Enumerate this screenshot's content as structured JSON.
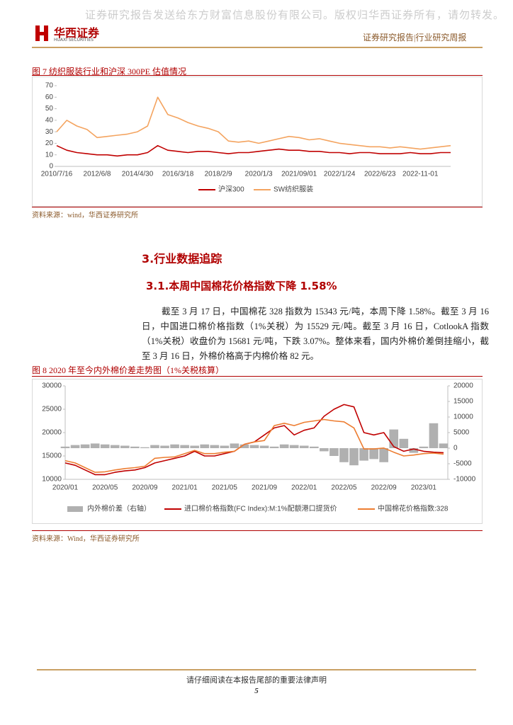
{
  "header": {
    "watermark": "证券研究报告发送给东方财富信息股份有限公司。版权归华西证券所有，请勿转发。",
    "logo_cn": "华西证券",
    "logo_en": "HUAXI SECURITIES",
    "report_type": "证券研究报告|行业研究周报"
  },
  "figure7": {
    "caption": "图 7  纺织服装行业和沪深 300PE 估值情况",
    "source": "资料来源：wind，华西证券研究所"
  },
  "section": {
    "title": "3.行业数据追踪",
    "subtitle": "3.1.本周中国棉花价格指数下降 1.58%",
    "paragraph": "截至 3 月 17 日，中国棉花 328 指数为 15343 元/吨，本周下降 1.58%。截至 3 月 16 日，中国进口棉价格指数（1%关税）为 15529 元/吨。截至 3 月 16 日，CotlookA 指数（1%关税）收盘价为 15681 元/吨，下跌 3.07%。整体来看，国内外棉价差倒挂缩小，截至 3 月 16 日，外棉价格高于内棉价格 82 元。"
  },
  "figure8": {
    "caption": "图 8 2020 年至今内外棉价差走势图（1%关税核算）",
    "source": "资料来源：Wind，华西证券研究所"
  },
  "footer": {
    "notice": "请仔细阅读在本报告尾部的重要法律声明",
    "page": 5
  },
  "chart_data": [
    {
      "type": "line",
      "categories": [
        "2010/7/16",
        null,
        null,
        null,
        "2012/6/8",
        null,
        null,
        null,
        "2014/4/30",
        null,
        null,
        null,
        "2016/3/18",
        null,
        null,
        null,
        "2018/2/9",
        null,
        null,
        null,
        "2020/1/3",
        null,
        null,
        null,
        "2021/09/01",
        null,
        null,
        null,
        "2022/1/24",
        null,
        null,
        null,
        "2022/6/23",
        null,
        null,
        null,
        "2022-11-01",
        null,
        null,
        null
      ],
      "series": [
        {
          "name": "沪深300",
          "color": "#c00000",
          "values": [
            18,
            14,
            12,
            11,
            10,
            10,
            9,
            10,
            10,
            12,
            18,
            14,
            13,
            12,
            13,
            13,
            12,
            11,
            12,
            12,
            13,
            14,
            15,
            14,
            14,
            13,
            13,
            12,
            12,
            11,
            12,
            12,
            11,
            11,
            11,
            12,
            11,
            11,
            12,
            12
          ]
        },
        {
          "name": "SW纺织服装",
          "color": "#f4a460",
          "values": [
            30,
            40,
            35,
            32,
            25,
            26,
            27,
            28,
            30,
            35,
            60,
            45,
            42,
            38,
            35,
            33,
            30,
            22,
            21,
            22,
            20,
            22,
            24,
            26,
            25,
            23,
            24,
            22,
            20,
            19,
            18,
            17,
            17,
            16,
            17,
            16,
            15,
            16,
            17,
            18
          ]
        }
      ],
      "ylim": [
        0,
        70
      ],
      "yticks": [
        0,
        10,
        20,
        30,
        40,
        50,
        60,
        70
      ],
      "legend": "bottom"
    },
    {
      "type": "combo",
      "categories": [
        "2020/01",
        null,
        null,
        null,
        "2020/05",
        null,
        null,
        null,
        "2020/09",
        null,
        null,
        null,
        "2021/01",
        null,
        null,
        null,
        "2021/05",
        null,
        null,
        null,
        "2021/09",
        null,
        null,
        null,
        "2022/01",
        null,
        null,
        null,
        "2022/05",
        null,
        null,
        null,
        "2022/09",
        null,
        null,
        null,
        "2023/01",
        null,
        null
      ],
      "series": [
        {
          "name": "内外棉价差（右轴）",
          "type": "bar",
          "axis": "y2",
          "color": "#b0b0b0",
          "values": [
            500,
            1000,
            1200,
            1500,
            1200,
            1000,
            800,
            500,
            300,
            1000,
            800,
            1200,
            1000,
            800,
            1200,
            1000,
            800,
            1500,
            1200,
            1000,
            800,
            500,
            1200,
            1000,
            800,
            500,
            -1000,
            -2500,
            -4500,
            -5500,
            -4000,
            -3500,
            -4500,
            6000,
            3000,
            -1500,
            500,
            8000,
            1500
          ]
        },
        {
          "name": "进口棉价格指数(FC Index):M:1%配额港口提货价",
          "type": "line",
          "color": "#c00000",
          "values": [
            13500,
            13000,
            12000,
            11000,
            11000,
            11500,
            11800,
            12000,
            12500,
            13500,
            14000,
            14500,
            15000,
            16000,
            15000,
            15000,
            15500,
            16000,
            17500,
            18000,
            19500,
            21000,
            21500,
            19500,
            20500,
            21000,
            23500,
            25000,
            26000,
            25500,
            20000,
            19500,
            20000,
            17000,
            16000,
            16500,
            16000,
            15800,
            15700
          ]
        },
        {
          "name": "中国棉花价格指数:328",
          "type": "line",
          "color": "#ed7d31",
          "values": [
            14000,
            13500,
            12500,
            11500,
            11600,
            12000,
            12300,
            12500,
            12800,
            14500,
            14700,
            14800,
            15500,
            16200,
            15500,
            15500,
            15800,
            16000,
            17500,
            18000,
            18300,
            21500,
            22000,
            21500,
            22200,
            22500,
            22800,
            22500,
            22300,
            21000,
            16500,
            16500,
            16700,
            15800,
            15000,
            15200,
            15500,
            15600,
            15400
          ]
        }
      ],
      "ylim": [
        10000,
        30000
      ],
      "yticks": [
        10000,
        15000,
        20000,
        25000,
        30000
      ],
      "y2lim": [
        -10000,
        20000
      ],
      "y2ticks": [
        -10000,
        -5000,
        0,
        5000,
        10000,
        15000,
        20000
      ],
      "legend": "bottom"
    }
  ]
}
